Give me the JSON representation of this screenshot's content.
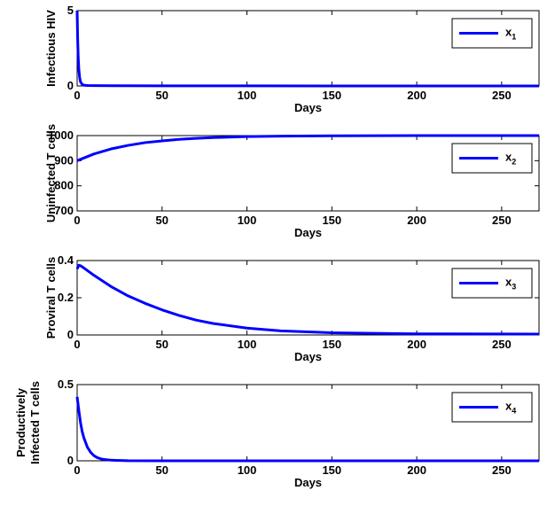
{
  "chart_data": [
    {
      "type": "line",
      "xlabel": "Days",
      "ylabel": "Infectious HIV",
      "ylabel_lines": [
        "Infectious HIV"
      ],
      "xlim": [
        0,
        272
      ],
      "ylim": [
        0,
        5
      ],
      "xticks": [
        0,
        50,
        100,
        150,
        200,
        250
      ],
      "yticks": [
        0,
        5
      ],
      "grid": false,
      "legend_position": "top-right",
      "series": [
        {
          "name": "x",
          "name_sub": "1",
          "color": "#0000ff",
          "x": [
            0,
            0.3,
            0.6,
            1,
            1.5,
            2,
            3,
            4,
            6,
            10,
            50,
            100,
            150,
            200,
            272
          ],
          "y": [
            5,
            3.2,
            2.0,
            1.1,
            0.55,
            0.27,
            0.1,
            0.05,
            0.03,
            0.02,
            0.01,
            0.005,
            0.003,
            0.002,
            0.001
          ]
        }
      ]
    },
    {
      "type": "line",
      "xlabel": "Days",
      "ylabel": "Uninfected T cells",
      "ylabel_lines": [
        "Uninfected T cells"
      ],
      "xlim": [
        0,
        272
      ],
      "ylim": [
        700,
        1000
      ],
      "xticks": [
        0,
        50,
        100,
        150,
        200,
        250
      ],
      "yticks": [
        700,
        800,
        900,
        1000
      ],
      "grid": false,
      "legend_position": "top-right",
      "series": [
        {
          "name": "x",
          "name_sub": "2",
          "color": "#0000ff",
          "x": [
            0,
            10,
            20,
            30,
            40,
            50,
            60,
            70,
            80,
            100,
            120,
            150,
            200,
            272
          ],
          "y": [
            900,
            927,
            947,
            961,
            972,
            979,
            985,
            989,
            992,
            996,
            998,
            999,
            1000,
            1000
          ]
        }
      ]
    },
    {
      "type": "line",
      "xlabel": "Days",
      "ylabel": "Proviral T cells",
      "ylabel_lines": [
        "Proviral T cells"
      ],
      "xlim": [
        0,
        272
      ],
      "ylim": [
        0,
        0.4
      ],
      "xticks": [
        0,
        50,
        100,
        150,
        200,
        250
      ],
      "yticks": [
        0,
        0.2,
        0.4
      ],
      "grid": false,
      "legend_position": "top-right",
      "series": [
        {
          "name": "x",
          "name_sub": "3",
          "color": "#0000ff",
          "x": [
            0,
            1,
            2,
            4,
            10,
            20,
            30,
            40,
            50,
            60,
            70,
            80,
            100,
            120,
            150,
            200,
            272
          ],
          "y": [
            0.355,
            0.375,
            0.372,
            0.36,
            0.32,
            0.26,
            0.21,
            0.17,
            0.135,
            0.105,
            0.08,
            0.062,
            0.037,
            0.022,
            0.012,
            0.006,
            0.005
          ]
        }
      ]
    },
    {
      "type": "line",
      "xlabel": "Days",
      "ylabel": "Productively Infected T cells",
      "ylabel_lines": [
        "Productively",
        "Infected T cells"
      ],
      "xlim": [
        0,
        272
      ],
      "ylim": [
        0,
        0.5
      ],
      "xticks": [
        0,
        50,
        100,
        150,
        200,
        250
      ],
      "yticks": [
        0,
        0.5
      ],
      "grid": false,
      "legend_position": "top-right",
      "series": [
        {
          "name": "x",
          "name_sub": "4",
          "color": "#0000ff",
          "x": [
            0,
            1,
            2,
            3,
            4,
            6,
            8,
            10,
            12,
            15,
            20,
            30,
            50,
            100,
            150,
            200,
            272
          ],
          "y": [
            0.42,
            0.33,
            0.25,
            0.19,
            0.15,
            0.09,
            0.055,
            0.033,
            0.02,
            0.01,
            0.004,
            0.001,
            0,
            0,
            0,
            0,
            0
          ]
        }
      ]
    }
  ]
}
